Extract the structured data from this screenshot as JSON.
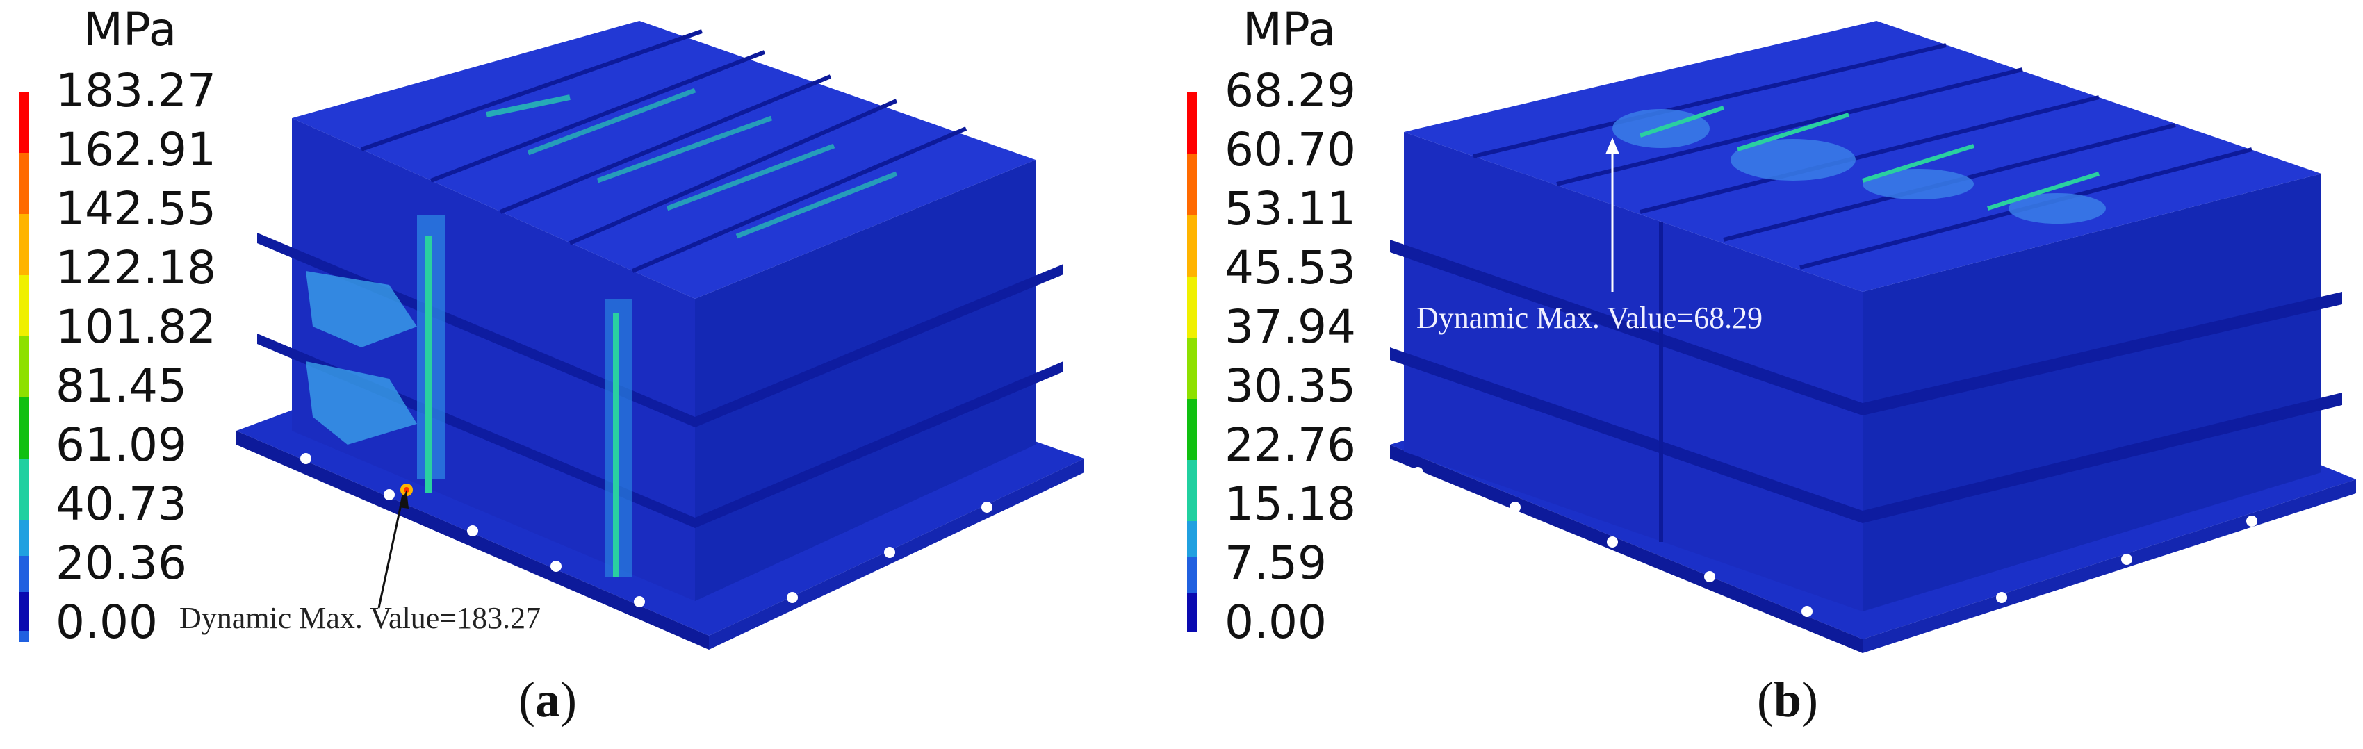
{
  "panels": [
    {
      "unit": "MPa",
      "ticks": [
        "183.27",
        "162.91",
        "142.55",
        "122.18",
        "101.82",
        "81.45",
        "61.09",
        "40.73",
        "20.36",
        "0.00"
      ],
      "annotation": "Dynamic Max. Value=183.27",
      "caption_open": "(",
      "caption_letter": "a",
      "caption_close": ")"
    },
    {
      "unit": "MPa",
      "ticks": [
        "68.29",
        "60.70",
        "53.11",
        "45.53",
        "37.94",
        "30.35",
        "22.76",
        "15.18",
        "7.59",
        "0.00"
      ],
      "annotation": "Dynamic Max. Value=68.29",
      "caption_open": "(",
      "caption_letter": "b",
      "caption_close": ")"
    }
  ],
  "colors": {
    "legend": [
      "#ff0000",
      "#ff6a00",
      "#ffb400",
      "#f0f000",
      "#8ee000",
      "#10c010",
      "#20d0a0",
      "#20a0e0",
      "#2060e0",
      "#0a0ab0"
    ],
    "model_base": "#1a2fc8",
    "model_top": "#2438d6",
    "model_dark": "#0d1a9a"
  }
}
